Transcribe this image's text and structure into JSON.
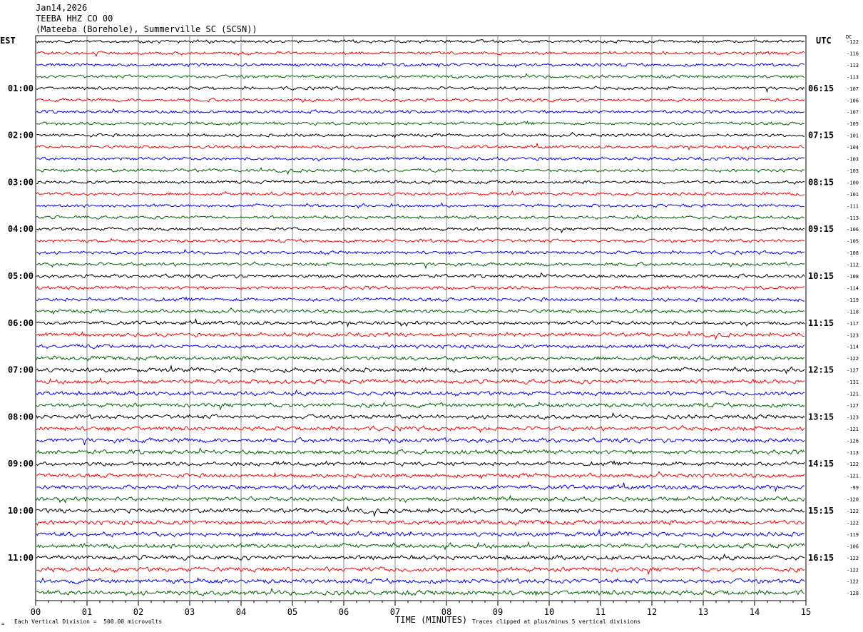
{
  "header": {
    "date": "Jan14,2026",
    "channel": "TEEBA HHZ CO 00",
    "station": "(Mateeba (Borehole), Summerville SC (SCSN))"
  },
  "left_zone": "EST",
  "right_zone": "UTC",
  "dc_label": "DC",
  "footer": {
    "scale": "Each Vertical Division =  500.00 microvolts",
    "clip": "Traces clipped at plus/minus 5 vertical divisions",
    "mark": "≈"
  },
  "chart_data": {
    "type": "line",
    "title": "",
    "xlabel": "TIME (MINUTES)",
    "ylabel": "",
    "xlim": [
      0,
      15
    ],
    "x_ticks": [
      "00",
      "01",
      "02",
      "03",
      "04",
      "05",
      "06",
      "07",
      "08",
      "09",
      "10",
      "11",
      "12",
      "13",
      "14",
      "15"
    ],
    "left_hour_labels": [
      "01:00",
      "02:00",
      "03:00",
      "04:00",
      "05:00",
      "06:00",
      "07:00",
      "08:00",
      "09:00",
      "10:00",
      "11:00"
    ],
    "right_hour_labels": [
      "06:15",
      "07:15",
      "08:15",
      "09:15",
      "10:15",
      "11:15",
      "12:15",
      "13:15",
      "14:15",
      "15:15",
      "16:15"
    ],
    "trace_colors": [
      "#000000",
      "#ff0000",
      "#0000ff",
      "#006400"
    ],
    "dc_offsets": [
      "-122",
      "-116",
      "-113",
      "-113",
      "-107",
      "-106",
      "-107",
      "-105",
      "-101",
      "-104",
      "-103",
      "-103",
      "-100",
      "-101",
      "-111",
      "-113",
      "-106",
      "-105",
      "-108",
      "-112",
      "-108",
      "-114",
      "-119",
      "-118",
      "-117",
      "-123",
      "-114",
      "-122",
      "-127",
      "-131",
      "-121",
      "-127",
      "-123",
      "-121",
      "-126",
      "-113",
      "-122",
      "-121",
      "-99",
      "-120",
      "-122",
      "-122",
      "-119",
      "-106",
      "-122",
      "-122",
      "-122",
      "-128"
    ],
    "trace_amplitude": [
      2.5,
      2.5,
      2.5,
      2.5,
      2.5,
      2.5,
      2.5,
      2.5,
      2.5,
      2.5,
      2.5,
      2.5,
      2.5,
      2.5,
      2.5,
      2.5,
      2.6,
      2.6,
      2.6,
      2.7,
      2.8,
      2.8,
      2.9,
      2.9,
      3.0,
      3.0,
      3.1,
      3.2,
      3.5,
      3.4,
      3.3,
      3.3,
      3.3,
      3.4,
      3.4,
      3.4,
      3.3,
      3.3,
      3.4,
      3.4,
      3.6,
      3.6,
      3.6,
      3.6,
      3.6,
      3.6,
      3.7,
      3.8
    ]
  }
}
